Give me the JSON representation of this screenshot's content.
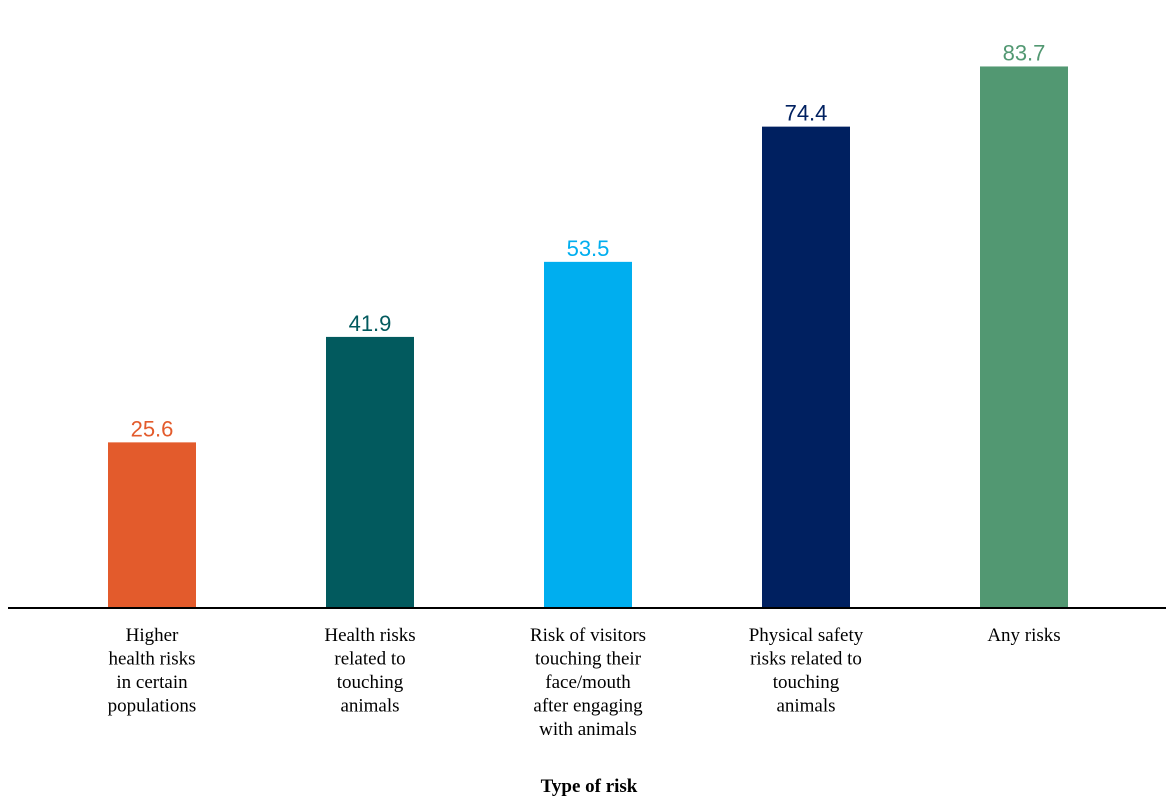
{
  "chart_data": {
    "type": "bar",
    "categories": [
      [
        "Higher",
        "health risks",
        "in certain",
        "populations"
      ],
      [
        "Health risks",
        "related to",
        "touching",
        "animals"
      ],
      [
        "Risk of visitors",
        "touching their",
        "face/mouth",
        "after engaging",
        "with animals"
      ],
      [
        "Physical safety",
        "risks related to",
        "touching",
        "animals"
      ],
      [
        "Any risks"
      ]
    ],
    "values": [
      25.6,
      41.9,
      53.5,
      74.4,
      83.7
    ],
    "value_labels": [
      "25.6",
      "41.9",
      "53.5",
      "74.4",
      "83.7"
    ],
    "colors": [
      "#E35B2C",
      "#025A5E",
      "#00AEEF",
      "#002060",
      "#529872"
    ],
    "title": "",
    "xlabel": "Type of risk",
    "ylabel": "",
    "ylim": [
      0,
      90
    ],
    "grid": false,
    "legend": "none"
  }
}
